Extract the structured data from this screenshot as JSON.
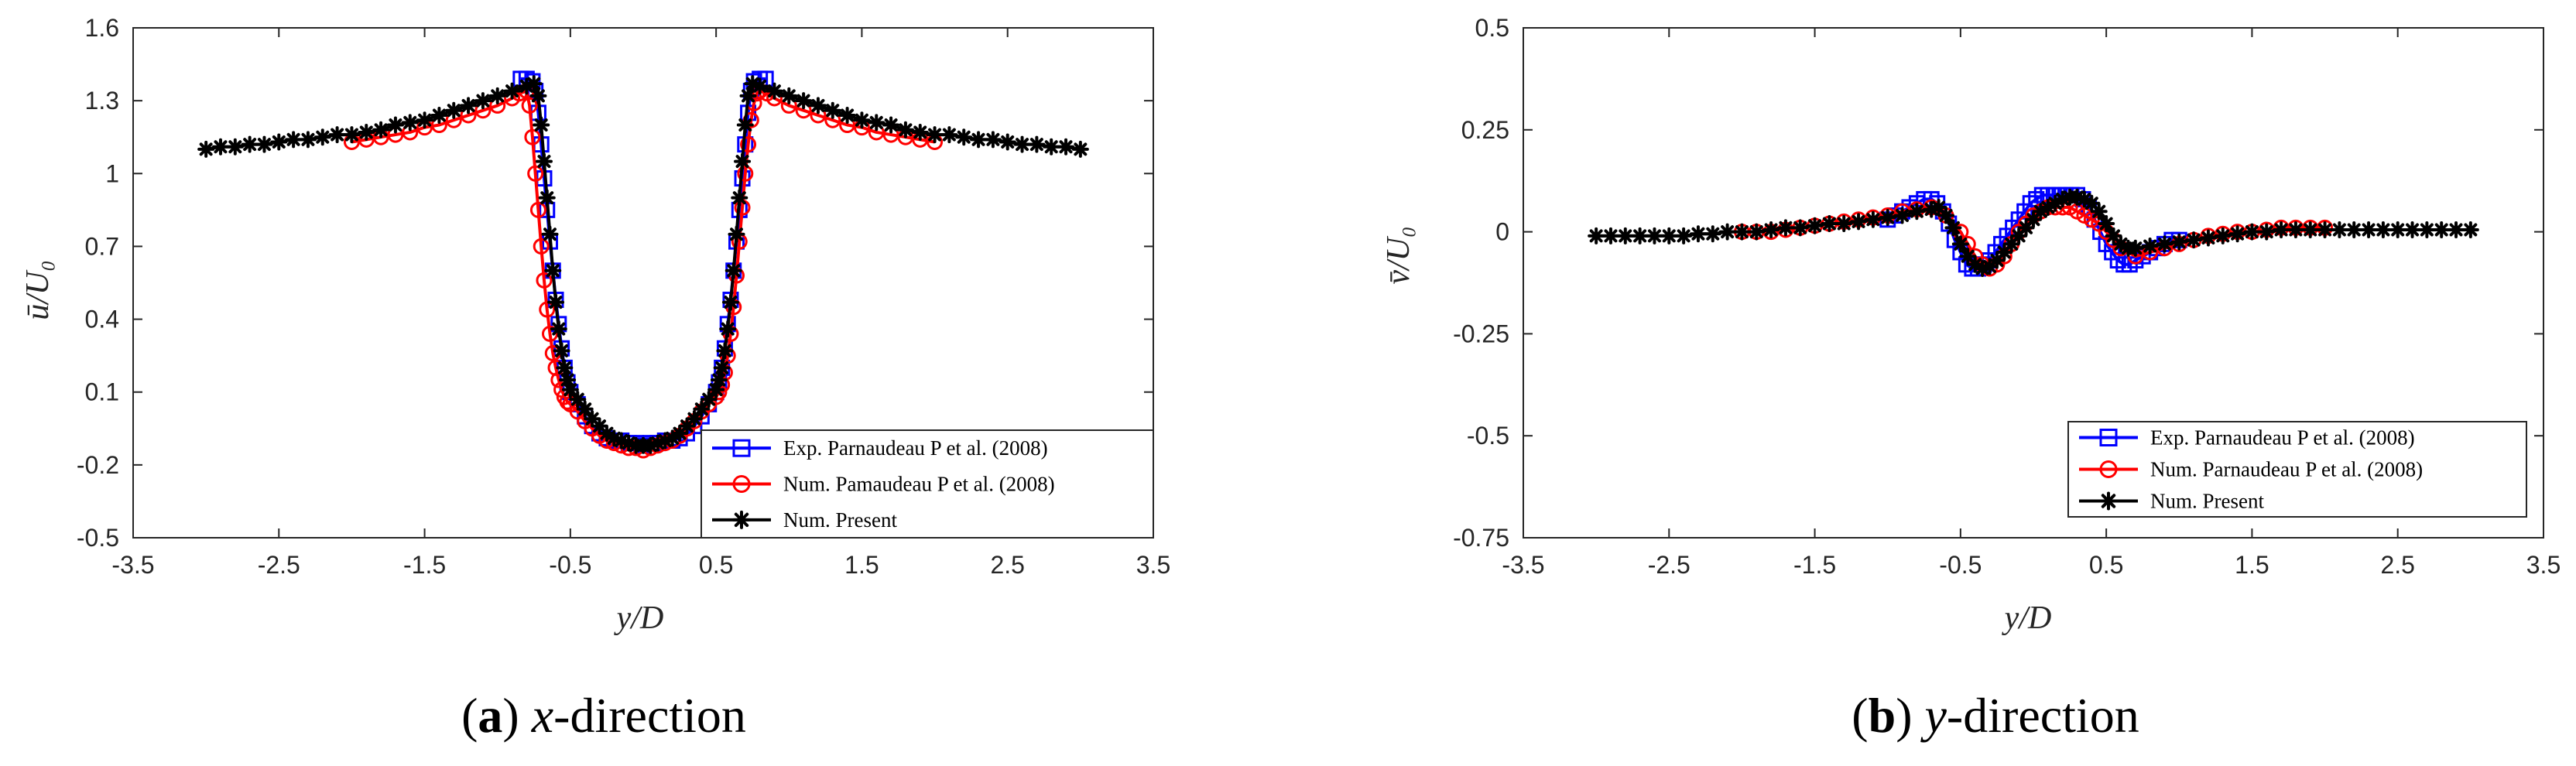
{
  "chart_data": [
    {
      "type": "line",
      "title": "",
      "ylabel": "ū/U₀",
      "xlabel": "y/D",
      "xlim": [
        -3.5,
        3.5
      ],
      "ylim": [
        -0.5,
        1.6
      ],
      "xticks": [
        -3.5,
        -2.5,
        -1.5,
        -0.5,
        0.5,
        1.5,
        2.5,
        3.5
      ],
      "xtick_labels": [
        "-3.5",
        "-2.5",
        "-1.5",
        "-0.5",
        "0.5",
        "1.5",
        "2.5",
        "3.5"
      ],
      "yticks": [
        -0.5,
        -0.2,
        0.1,
        0.4,
        0.7,
        1.0,
        1.3,
        1.6
      ],
      "ytick_labels": [
        "-0.5",
        "-0.2",
        "0.1",
        "0.4",
        "0.7",
        "1",
        "1.3",
        "1.6"
      ],
      "legend_position": "bottom-right",
      "caption": {
        "letter": "a",
        "axis": "x",
        "rest": "-direction"
      },
      "series": [
        {
          "name": "Exp. Parnaudeau P et al. (2008)",
          "color": "#0000ff",
          "marker": "square",
          "x": [
            -0.84,
            -0.8,
            -0.76,
            -0.74,
            -0.72,
            -0.7,
            -0.68,
            -0.66,
            -0.64,
            -0.62,
            -0.6,
            -0.58,
            -0.56,
            -0.54,
            -0.52,
            -0.5,
            -0.45,
            -0.4,
            -0.35,
            -0.3,
            -0.25,
            -0.2,
            -0.15,
            -0.1,
            -0.05,
            0,
            0.05,
            0.1,
            0.15,
            0.2,
            0.25,
            0.3,
            0.35,
            0.4,
            0.45,
            0.5,
            0.52,
            0.54,
            0.56,
            0.58,
            0.6,
            0.62,
            0.64,
            0.66,
            0.68,
            0.7,
            0.72,
            0.74,
            0.76,
            0.8,
            0.84
          ],
          "y": [
            1.39,
            1.39,
            1.38,
            1.34,
            1.25,
            1.12,
            0.98,
            0.85,
            0.72,
            0.6,
            0.48,
            0.38,
            0.28,
            0.2,
            0.14,
            0.1,
            0.05,
            0.0,
            -0.04,
            -0.07,
            -0.09,
            -0.1,
            -0.1,
            -0.11,
            -0.11,
            -0.12,
            -0.11,
            -0.11,
            -0.1,
            -0.1,
            -0.09,
            -0.07,
            -0.04,
            0.0,
            0.05,
            0.1,
            0.14,
            0.2,
            0.28,
            0.38,
            0.48,
            0.6,
            0.72,
            0.85,
            0.98,
            1.12,
            1.25,
            1.34,
            1.38,
            1.39,
            1.39
          ]
        },
        {
          "name": "Num. Pamaudeau P et al. (2008)",
          "color": "#ff0000",
          "marker": "circle",
          "x": [
            -2.0,
            -1.9,
            -1.8,
            -1.7,
            -1.6,
            -1.5,
            -1.4,
            -1.3,
            -1.2,
            -1.1,
            -1.0,
            -0.9,
            -0.85,
            -0.8,
            -0.78,
            -0.76,
            -0.74,
            -0.72,
            -0.7,
            -0.68,
            -0.66,
            -0.64,
            -0.62,
            -0.6,
            -0.58,
            -0.56,
            -0.54,
            -0.52,
            -0.5,
            -0.45,
            -0.4,
            -0.35,
            -0.3,
            -0.25,
            -0.2,
            -0.15,
            -0.1,
            -0.05,
            0,
            0.05,
            0.1,
            0.15,
            0.2,
            0.25,
            0.3,
            0.35,
            0.4,
            0.45,
            0.5,
            0.52,
            0.54,
            0.56,
            0.58,
            0.6,
            0.62,
            0.64,
            0.66,
            0.68,
            0.7,
            0.72,
            0.74,
            0.76,
            0.78,
            0.8,
            0.85,
            0.9,
            1.0,
            1.1,
            1.2,
            1.3,
            1.4,
            1.5,
            1.6,
            1.7,
            1.8,
            1.9,
            2.0
          ],
          "y": [
            1.13,
            1.14,
            1.15,
            1.16,
            1.17,
            1.19,
            1.2,
            1.22,
            1.24,
            1.26,
            1.28,
            1.31,
            1.33,
            1.34,
            1.28,
            1.15,
            1.0,
            0.85,
            0.7,
            0.56,
            0.44,
            0.34,
            0.26,
            0.2,
            0.15,
            0.11,
            0.08,
            0.06,
            0.05,
            0.02,
            -0.02,
            -0.05,
            -0.08,
            -0.1,
            -0.11,
            -0.12,
            -0.13,
            -0.13,
            -0.14,
            -0.13,
            -0.12,
            -0.11,
            -0.1,
            -0.08,
            -0.05,
            -0.02,
            0.02,
            0.05,
            0.08,
            0.1,
            0.13,
            0.18,
            0.25,
            0.34,
            0.45,
            0.58,
            0.72,
            0.86,
            1.0,
            1.12,
            1.22,
            1.29,
            1.33,
            1.34,
            1.33,
            1.31,
            1.28,
            1.26,
            1.24,
            1.22,
            1.2,
            1.19,
            1.17,
            1.16,
            1.15,
            1.14,
            1.13
          ]
        },
        {
          "name": "Num. Present",
          "color": "#000000",
          "marker": "star",
          "x": [
            -3.0,
            -2.9,
            -2.8,
            -2.7,
            -2.6,
            -2.5,
            -2.4,
            -2.3,
            -2.2,
            -2.1,
            -2.0,
            -1.9,
            -1.8,
            -1.7,
            -1.6,
            -1.5,
            -1.4,
            -1.3,
            -1.2,
            -1.1,
            -1.0,
            -0.9,
            -0.8,
            -0.75,
            -0.72,
            -0.7,
            -0.68,
            -0.66,
            -0.64,
            -0.62,
            -0.6,
            -0.58,
            -0.56,
            -0.54,
            -0.52,
            -0.5,
            -0.45,
            -0.4,
            -0.35,
            -0.3,
            -0.25,
            -0.2,
            -0.15,
            -0.1,
            -0.05,
            0,
            0.05,
            0.1,
            0.15,
            0.2,
            0.25,
            0.3,
            0.35,
            0.4,
            0.45,
            0.5,
            0.52,
            0.54,
            0.56,
            0.58,
            0.6,
            0.62,
            0.64,
            0.66,
            0.68,
            0.7,
            0.72,
            0.75,
            0.8,
            0.9,
            1.0,
            1.1,
            1.2,
            1.3,
            1.4,
            1.5,
            1.6,
            1.7,
            1.8,
            1.9,
            2.0,
            2.1,
            2.2,
            2.3,
            2.4,
            2.5,
            2.6,
            2.7,
            2.8,
            2.9,
            3.0
          ],
          "y": [
            1.1,
            1.11,
            1.11,
            1.12,
            1.12,
            1.13,
            1.14,
            1.14,
            1.15,
            1.16,
            1.16,
            1.17,
            1.18,
            1.2,
            1.21,
            1.22,
            1.24,
            1.26,
            1.28,
            1.3,
            1.32,
            1.34,
            1.36,
            1.37,
            1.32,
            1.2,
            1.05,
            0.9,
            0.75,
            0.6,
            0.47,
            0.36,
            0.27,
            0.2,
            0.15,
            0.11,
            0.07,
            0.03,
            -0.01,
            -0.04,
            -0.07,
            -0.09,
            -0.1,
            -0.11,
            -0.12,
            -0.12,
            -0.12,
            -0.11,
            -0.1,
            -0.09,
            -0.07,
            -0.04,
            -0.01,
            0.03,
            0.07,
            0.11,
            0.15,
            0.2,
            0.27,
            0.36,
            0.47,
            0.6,
            0.75,
            0.9,
            1.05,
            1.2,
            1.32,
            1.37,
            1.36,
            1.34,
            1.32,
            1.3,
            1.28,
            1.26,
            1.24,
            1.22,
            1.21,
            1.2,
            1.18,
            1.17,
            1.16,
            1.16,
            1.15,
            1.14,
            1.14,
            1.13,
            1.12,
            1.12,
            1.11,
            1.11,
            1.1
          ]
        }
      ]
    },
    {
      "type": "line",
      "title": "",
      "ylabel": "v̄/U₀",
      "xlabel": "y/D",
      "xlim": [
        -3.5,
        3.5
      ],
      "ylim": [
        -0.75,
        0.5
      ],
      "xticks": [
        -3.5,
        -2.5,
        -1.5,
        -0.5,
        0.5,
        1.5,
        2.5,
        3.5
      ],
      "xtick_labels": [
        "-3.5",
        "-2.5",
        "-1.5",
        "-0.5",
        "0.5",
        "1.5",
        "2.5",
        "3.5"
      ],
      "yticks": [
        -0.75,
        -0.5,
        -0.25,
        0,
        0.25,
        0.5
      ],
      "ytick_labels": [
        "-0.75",
        "-0.5",
        "-0.25",
        "0",
        "0.25",
        "0.5"
      ],
      "legend_position": "bottom-right",
      "caption": {
        "letter": "b",
        "axis": "y",
        "rest": "-direction"
      },
      "series": [
        {
          "name": "Exp. Parnaudeau P et al. (2008)",
          "color": "#0000ff",
          "marker": "square",
          "x": [
            -1.0,
            -0.95,
            -0.9,
            -0.85,
            -0.8,
            -0.75,
            -0.7,
            -0.66,
            -0.62,
            -0.58,
            -0.54,
            -0.5,
            -0.46,
            -0.42,
            -0.38,
            -0.34,
            -0.3,
            -0.26,
            -0.22,
            -0.18,
            -0.14,
            -0.1,
            -0.06,
            -0.02,
            0.02,
            0.06,
            0.1,
            0.14,
            0.18,
            0.22,
            0.26,
            0.3,
            0.34,
            0.38,
            0.42,
            0.46,
            0.5,
            0.54,
            0.58,
            0.62,
            0.66,
            0.7,
            0.75,
            0.8,
            0.85,
            0.9,
            0.95,
            1.0
          ],
          "y": [
            0.03,
            0.04,
            0.05,
            0.06,
            0.07,
            0.08,
            0.08,
            0.07,
            0.05,
            0.02,
            -0.02,
            -0.05,
            -0.08,
            -0.09,
            -0.09,
            -0.08,
            -0.07,
            -0.05,
            -0.03,
            -0.01,
            0.01,
            0.03,
            0.05,
            0.07,
            0.08,
            0.09,
            0.09,
            0.09,
            0.09,
            0.09,
            0.09,
            0.09,
            0.08,
            0.06,
            0.03,
            0.0,
            -0.03,
            -0.05,
            -0.07,
            -0.08,
            -0.08,
            -0.07,
            -0.06,
            -0.05,
            -0.04,
            -0.03,
            -0.02,
            -0.02
          ]
        },
        {
          "name": "Num. Parnaudeau P et al. (2008)",
          "color": "#ff0000",
          "marker": "circle",
          "x": [
            -2.0,
            -1.9,
            -1.8,
            -1.7,
            -1.6,
            -1.5,
            -1.4,
            -1.3,
            -1.2,
            -1.1,
            -1.0,
            -0.9,
            -0.8,
            -0.7,
            -0.6,
            -0.5,
            -0.45,
            -0.4,
            -0.35,
            -0.3,
            -0.25,
            -0.2,
            -0.15,
            -0.1,
            -0.05,
            0,
            0.05,
            0.1,
            0.15,
            0.2,
            0.25,
            0.3,
            0.35,
            0.4,
            0.45,
            0.5,
            0.55,
            0.6,
            0.7,
            0.8,
            0.9,
            1.0,
            1.1,
            1.2,
            1.3,
            1.4,
            1.5,
            1.6,
            1.7,
            1.8,
            1.9,
            2.0
          ],
          "y": [
            0.0,
            0.0,
            0.0,
            0.005,
            0.01,
            0.015,
            0.02,
            0.025,
            0.03,
            0.035,
            0.04,
            0.05,
            0.055,
            0.06,
            0.04,
            0.0,
            -0.03,
            -0.06,
            -0.08,
            -0.09,
            -0.08,
            -0.06,
            -0.03,
            0.0,
            0.02,
            0.04,
            0.05,
            0.06,
            0.06,
            0.06,
            0.06,
            0.05,
            0.04,
            0.03,
            0.02,
            0.0,
            -0.02,
            -0.04,
            -0.06,
            -0.05,
            -0.04,
            -0.03,
            -0.02,
            -0.01,
            -0.005,
            0.0,
            0.0,
            0.005,
            0.01,
            0.01,
            0.01,
            0.01
          ]
        },
        {
          "name": "Num. Present",
          "color": "#000000",
          "marker": "star",
          "x": [
            -3.0,
            -2.9,
            -2.8,
            -2.7,
            -2.6,
            -2.5,
            -2.4,
            -2.3,
            -2.2,
            -2.1,
            -2.0,
            -1.9,
            -1.8,
            -1.7,
            -1.6,
            -1.5,
            -1.4,
            -1.3,
            -1.2,
            -1.1,
            -1.0,
            -0.9,
            -0.8,
            -0.7,
            -0.65,
            -0.6,
            -0.55,
            -0.5,
            -0.45,
            -0.4,
            -0.35,
            -0.3,
            -0.25,
            -0.2,
            -0.15,
            -0.1,
            -0.05,
            0,
            0.05,
            0.1,
            0.15,
            0.2,
            0.25,
            0.3,
            0.35,
            0.4,
            0.45,
            0.5,
            0.55,
            0.6,
            0.65,
            0.7,
            0.8,
            0.9,
            1.0,
            1.1,
            1.2,
            1.3,
            1.4,
            1.5,
            1.6,
            1.7,
            1.8,
            1.9,
            2.0,
            2.1,
            2.2,
            2.3,
            2.4,
            2.5,
            2.6,
            2.7,
            2.8,
            2.9,
            3.0
          ],
          "y": [
            -0.01,
            -0.01,
            -0.01,
            -0.01,
            -0.01,
            -0.01,
            -0.01,
            -0.005,
            -0.005,
            0.0,
            0.0,
            0.0,
            0.005,
            0.01,
            0.01,
            0.015,
            0.02,
            0.02,
            0.025,
            0.03,
            0.035,
            0.04,
            0.05,
            0.055,
            0.06,
            0.04,
            0.01,
            -0.03,
            -0.06,
            -0.08,
            -0.09,
            -0.085,
            -0.07,
            -0.05,
            -0.03,
            -0.01,
            0.01,
            0.03,
            0.05,
            0.06,
            0.07,
            0.08,
            0.085,
            0.085,
            0.08,
            0.07,
            0.05,
            0.02,
            -0.01,
            -0.03,
            -0.04,
            -0.04,
            -0.035,
            -0.03,
            -0.025,
            -0.02,
            -0.015,
            -0.01,
            -0.005,
            0.0,
            0.0,
            0.005,
            0.005,
            0.005,
            0.005,
            0.005,
            0.005,
            0.005,
            0.005,
            0.005,
            0.005,
            0.005,
            0.005,
            0.005,
            0.005
          ]
        }
      ]
    }
  ]
}
